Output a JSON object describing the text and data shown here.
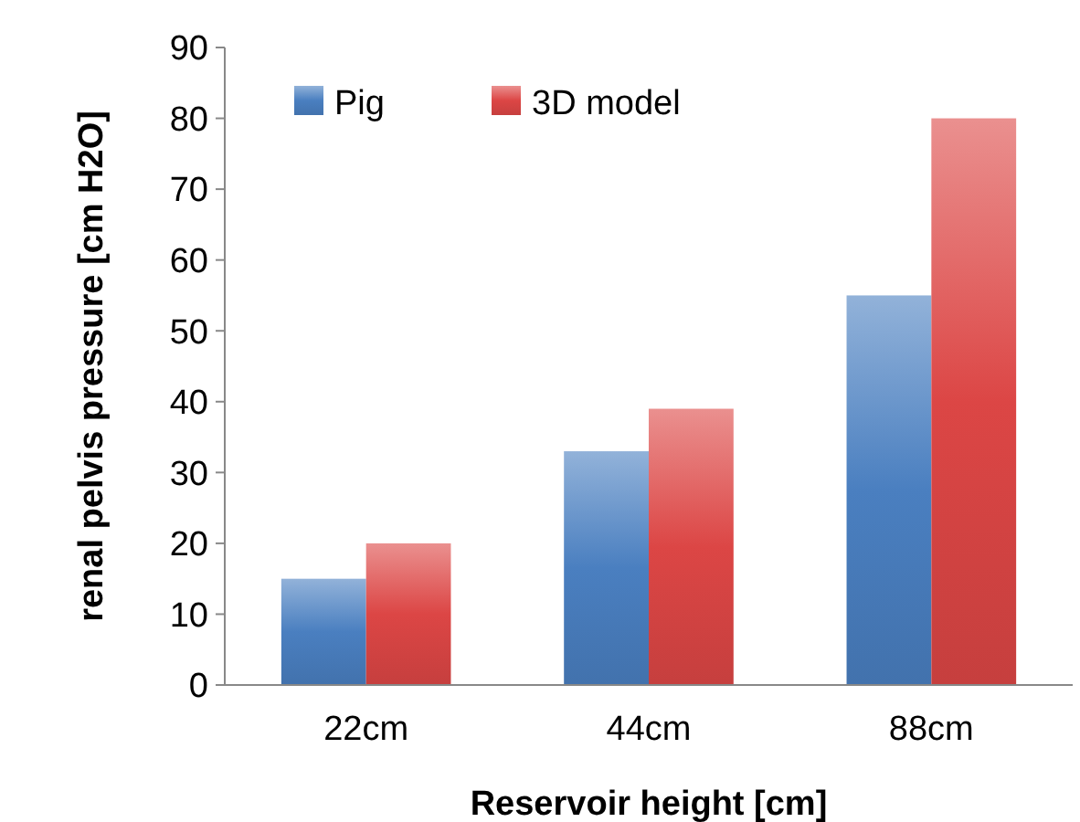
{
  "chart_data": {
    "type": "bar",
    "xlabel": "Reservoir height [cm]",
    "ylabel": "renal pelvis pressure [cm H2O]",
    "categories": [
      "22cm",
      "44cm",
      "88cm"
    ],
    "series": [
      {
        "name": "Pig",
        "color": "#4a7fc0",
        "values": [
          15,
          33,
          55
        ]
      },
      {
        "name": "3D model",
        "color": "#dc4645",
        "values": [
          20,
          39,
          80
        ]
      }
    ],
    "ylim": [
      0,
      90
    ],
    "yticks": [
      0,
      10,
      20,
      30,
      40,
      50,
      60,
      70,
      80,
      90
    ],
    "grid": false,
    "legend": "top left"
  }
}
